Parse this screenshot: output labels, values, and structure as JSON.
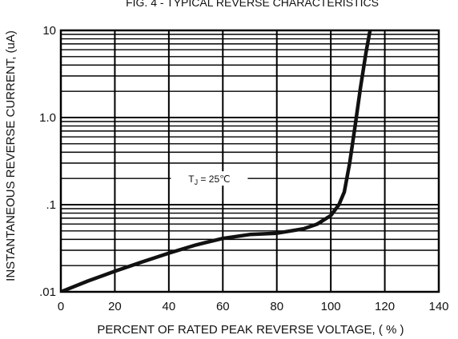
{
  "chart_data": {
    "type": "line",
    "title": "FIG. 4 - TYPICAL REVERSE CHARACTERISTICS",
    "xlabel": "PERCENT OF RATED PEAK REVERSE VOLTAGE, ( % )",
    "ylabel": "INSTANTANEOUS REVERSE CURRENT, (uA)",
    "x_scale": "linear",
    "y_scale": "log",
    "xlim": [
      0,
      140
    ],
    "ylim": [
      0.01,
      10
    ],
    "x_ticks": [
      0,
      20,
      40,
      60,
      80,
      100,
      120,
      140
    ],
    "x_tick_labels": [
      "0",
      "20",
      "40",
      "60",
      "80",
      "100",
      "120",
      "140"
    ],
    "y_ticks": [
      0.01,
      0.1,
      1,
      10
    ],
    "y_tick_labels": [
      ".01",
      ".1",
      "1.0",
      "10"
    ],
    "grid": true,
    "annotation": {
      "text_main": "T",
      "text_sub": "J",
      "text_rest": " = 25℃",
      "x": 55,
      "y": 0.2
    },
    "series": [
      {
        "x": [
          0,
          10,
          20,
          30,
          40,
          50,
          60,
          70,
          80,
          90,
          95,
          100,
          103,
          105,
          107,
          109,
          111,
          113,
          115
        ],
        "y": [
          0.01,
          0.0133,
          0.0172,
          0.022,
          0.0278,
          0.0345,
          0.041,
          0.0455,
          0.047,
          0.053,
          0.06,
          0.075,
          0.1,
          0.14,
          0.3,
          0.8,
          2.2,
          5.5,
          12
        ]
      }
    ]
  }
}
